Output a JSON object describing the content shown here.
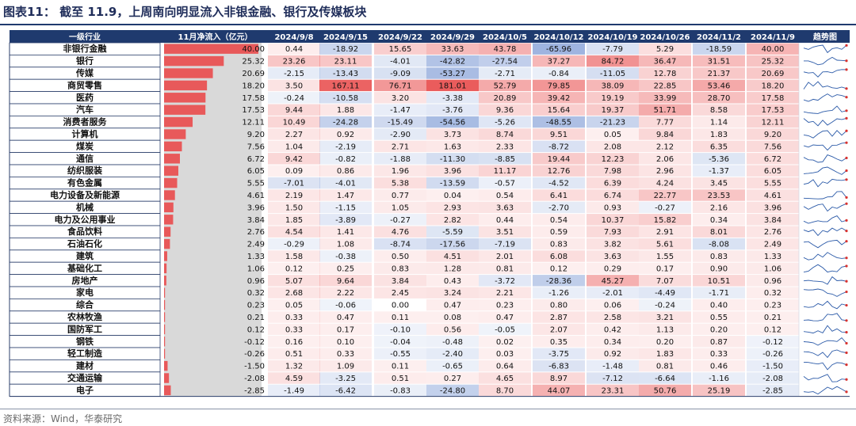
{
  "title": "图表11：   截至 11.9，上周南向明显流入非银金融、银行及传媒板块",
  "source": "资料来源：Wind，华泰研究",
  "colors": {
    "header_bg": "#1f3a6e",
    "bar": "#e8595a",
    "bar_bg": "#d9d9d9",
    "pos": "#e84a4a",
    "neg": "#4a72c4",
    "spark_line": "#2b5aa8",
    "spark_end": "#d9322f"
  },
  "chart_data": {
    "type": "table",
    "headers": {
      "industry": "一级行业",
      "nov_flow": "11月净流入（亿元）",
      "trend": "趋势图"
    },
    "dates": [
      "2024/9/8",
      "2024/9/15",
      "2024/9/22",
      "2024/9/29",
      "2024/10/5",
      "2024/10/12",
      "2024/10/19",
      "2024/10/26",
      "2024/11/2",
      "2024/11/9"
    ],
    "rows": [
      {
        "name": "非银行金融",
        "nov": "40.00",
        "w": [
          "0.44",
          "-18.92",
          "15.65",
          "33.63",
          "43.78",
          "-65.96",
          "-7.79",
          "5.29",
          "-18.59",
          "40.00"
        ]
      },
      {
        "name": "银行",
        "nov": "25.32",
        "w": [
          "23.26",
          "23.11",
          "-4.01",
          "-42.82",
          "-27.54",
          "37.27",
          "84.72",
          "36.47",
          "31.51",
          "25.32"
        ]
      },
      {
        "name": "传媒",
        "nov": "20.69",
        "w": [
          "-2.15",
          "-13.43",
          "-9.09",
          "-53.27",
          "-2.71",
          "-0.84",
          "-11.05",
          "12.78",
          "21.37",
          "20.69"
        ]
      },
      {
        "name": "商贸零售",
        "nov": "18.20",
        "w": [
          "3.50",
          "167.11",
          "76.71",
          "181.01",
          "52.79",
          "79.85",
          "38.09",
          "22.85",
          "53.46",
          "18.20"
        ]
      },
      {
        "name": "医药",
        "nov": "17.58",
        "w": [
          "-0.24",
          "-10.58",
          "3.20",
          "-3.38",
          "20.89",
          "39.42",
          "19.19",
          "33.99",
          "28.70",
          "17.58"
        ]
      },
      {
        "name": "汽车",
        "nov": "17.53",
        "w": [
          "9.44",
          "1.88",
          "-1.47",
          "-3.76",
          "9.36",
          "15.64",
          "19.37",
          "51.71",
          "8.58",
          "17.53"
        ]
      },
      {
        "name": "消费者服务",
        "nov": "12.11",
        "w": [
          "10.49",
          "-24.28",
          "-15.49",
          "-54.56",
          "-5.26",
          "-48.55",
          "-21.23",
          "7.77",
          "1.14",
          "12.11"
        ]
      },
      {
        "name": "计算机",
        "nov": "9.20",
        "w": [
          "2.27",
          "0.92",
          "-2.90",
          "3.73",
          "8.74",
          "9.51",
          "0.05",
          "9.84",
          "1.83",
          "9.20"
        ]
      },
      {
        "name": "煤炭",
        "nov": "7.56",
        "w": [
          "1.04",
          "-2.19",
          "2.71",
          "1.63",
          "2.33",
          "-8.72",
          "2.08",
          "2.12",
          "6.35",
          "7.56"
        ]
      },
      {
        "name": "通信",
        "nov": "6.72",
        "w": [
          "9.42",
          "-0.82",
          "-1.88",
          "-11.30",
          "-8.85",
          "19.44",
          "12.23",
          "2.06",
          "-5.36",
          "6.72"
        ]
      },
      {
        "name": "纺织服装",
        "nov": "6.05",
        "w": [
          "0.09",
          "0.86",
          "1.96",
          "3.96",
          "11.17",
          "12.76",
          "7.98",
          "2.96",
          "-1.37",
          "6.05"
        ]
      },
      {
        "name": "有色金属",
        "nov": "5.55",
        "w": [
          "-7.01",
          "-4.01",
          "5.38",
          "-13.59",
          "-0.57",
          "-4.52",
          "6.39",
          "4.24",
          "3.45",
          "5.55"
        ]
      },
      {
        "name": "电力设备及新能源",
        "nov": "4.61",
        "w": [
          "2.19",
          "1.47",
          "0.77",
          "0.04",
          "0.54",
          "6.41",
          "6.74",
          "22.77",
          "23.53",
          "4.61"
        ]
      },
      {
        "name": "机械",
        "nov": "3.96",
        "w": [
          "1.50",
          "-1.15",
          "1.05",
          "2.93",
          "3.63",
          "-2.70",
          "0.93",
          "-0.27",
          "2.16",
          "3.96"
        ]
      },
      {
        "name": "电力及公用事业",
        "nov": "3.84",
        "w": [
          "1.85",
          "-3.89",
          "-0.27",
          "2.82",
          "0.44",
          "0.54",
          "10.37",
          "15.82",
          "0.34",
          "3.84"
        ]
      },
      {
        "name": "食品饮料",
        "nov": "2.76",
        "w": [
          "4.54",
          "1.41",
          "4.76",
          "-5.59",
          "3.51",
          "0.59",
          "7.93",
          "2.91",
          "8.01",
          "2.76"
        ]
      },
      {
        "name": "石油石化",
        "nov": "2.49",
        "w": [
          "-0.29",
          "1.08",
          "-8.74",
          "-17.56",
          "-7.19",
          "0.83",
          "3.82",
          "5.61",
          "-8.08",
          "2.49"
        ]
      },
      {
        "name": "建筑",
        "nov": "1.33",
        "w": [
          "1.58",
          "-0.38",
          "0.50",
          "4.51",
          "2.01",
          "6.08",
          "3.63",
          "1.55",
          "0.83",
          "1.33"
        ]
      },
      {
        "name": "基础化工",
        "nov": "1.06",
        "w": [
          "0.12",
          "0.25",
          "0.83",
          "1.28",
          "0.81",
          "0.12",
          "0.29",
          "0.17",
          "0.90",
          "1.06"
        ]
      },
      {
        "name": "房地产",
        "nov": "0.96",
        "w": [
          "5.07",
          "9.64",
          "3.84",
          "0.43",
          "-3.72",
          "-28.36",
          "45.27",
          "7.07",
          "10.51",
          "0.96"
        ]
      },
      {
        "name": "家电",
        "nov": "0.32",
        "w": [
          "2.68",
          "2.22",
          "2.45",
          "3.24",
          "2.21",
          "-1.26",
          "-2.01",
          "-4.49",
          "-1.71",
          "0.32"
        ]
      },
      {
        "name": "综合",
        "nov": "0.23",
        "w": [
          "0.05",
          "-0.06",
          "0.00",
          "0.47",
          "0.23",
          "0.80",
          "0.06",
          "-0.24",
          "0.40",
          "0.23"
        ]
      },
      {
        "name": "农林牧渔",
        "nov": "0.21",
        "w": [
          "0.33",
          "0.47",
          "0.11",
          "0.08",
          "0.47",
          "2.87",
          "2.58",
          "3.21",
          "0.55",
          "0.21"
        ]
      },
      {
        "name": "国防军工",
        "nov": "0.12",
        "w": [
          "0.33",
          "0.17",
          "-0.10",
          "0.56",
          "-0.05",
          "2.07",
          "0.42",
          "1.13",
          "0.20",
          "0.12"
        ]
      },
      {
        "name": "钢铁",
        "nov": "-0.12",
        "w": [
          "0.16",
          "0.10",
          "-0.04",
          "-0.48",
          "0.02",
          "0.35",
          "0.34",
          "0.20",
          "0.87",
          "-0.12"
        ]
      },
      {
        "name": "轻工制造",
        "nov": "-0.26",
        "w": [
          "0.51",
          "0.33",
          "-0.55",
          "-2.40",
          "0.03",
          "-3.75",
          "0.92",
          "1.83",
          "0.33",
          "-0.26"
        ]
      },
      {
        "name": "建材",
        "nov": "-1.50",
        "w": [
          "1.32",
          "1.09",
          "0.11",
          "-0.65",
          "0.64",
          "-6.83",
          "-1.48",
          "0.81",
          "0.46",
          "-1.50"
        ]
      },
      {
        "name": "交通运输",
        "nov": "-2.08",
        "w": [
          "4.59",
          "-3.25",
          "0.51",
          "0.27",
          "4.65",
          "8.97",
          "-7.12",
          "-6.64",
          "-1.16",
          "-2.08"
        ]
      },
      {
        "name": "电子",
        "nov": "-2.85",
        "w": [
          "-1.49",
          "-6.42",
          "-0.83",
          "-24.80",
          "8.70",
          "44.07",
          "23.31",
          "50.76",
          "25.19",
          "-2.85"
        ]
      }
    ]
  }
}
